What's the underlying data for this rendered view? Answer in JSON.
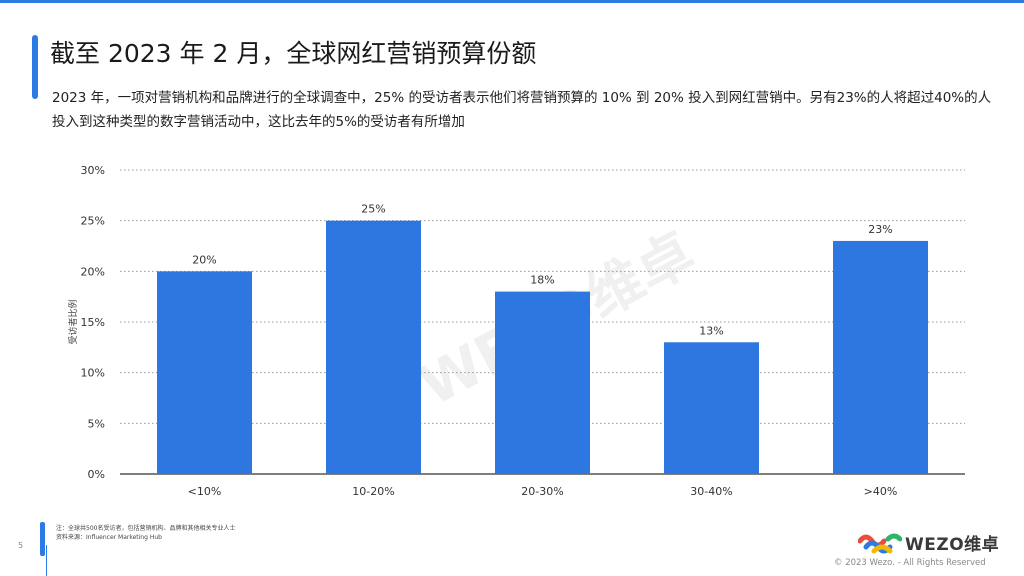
{
  "title": "截至 2023 年 2 月，全球网红营销预算份额",
  "subtitle": "2023 年，一项对营销机构和品牌进行的全球调查中，25% 的受访者表示他们将营销预算的 10% 到 20% 投入到网红营销中。另有23%的人将超过40%的人投入到这种类型的数字营销活动中，这比去年的5%的受访者有所增加",
  "watermark": "WEZO维卓",
  "footnote": {
    "line1": "注：全球共500名受访者，包括营销机构、品牌和其他相关专业人士",
    "line2": "资料来源：Influencer Marketing Hub"
  },
  "page_number": "5",
  "logo_text": "WEZO维卓",
  "copyright": "© 2023 Wezo. - All Rights Reserved",
  "colors": {
    "accent": "#2c7be5",
    "bar": "#2f77e0"
  },
  "chart_data": {
    "type": "bar",
    "categories": [
      "<10%",
      "10-20%",
      "20-30%",
      "30-40%",
      ">40%"
    ],
    "values": [
      20,
      25,
      18,
      13,
      23
    ],
    "value_labels": [
      "20%",
      "25%",
      "18%",
      "13%",
      "23%"
    ],
    "ylabel": "受访者比例",
    "ylim": [
      0,
      30
    ],
    "yticks": [
      0,
      5,
      10,
      15,
      20,
      25,
      30
    ],
    "ytick_labels": [
      "0%",
      "5%",
      "10%",
      "15%",
      "20%",
      "25%",
      "30%"
    ],
    "grid": true
  }
}
